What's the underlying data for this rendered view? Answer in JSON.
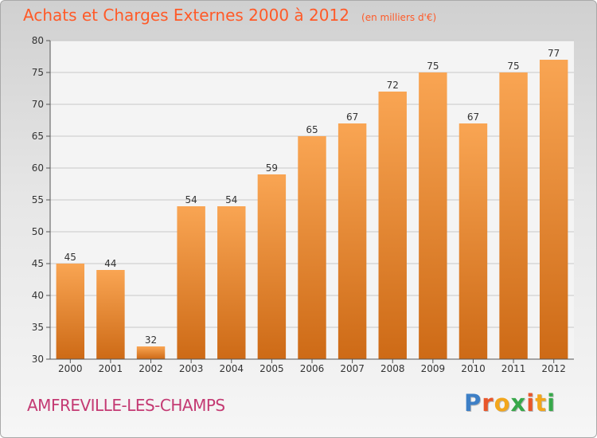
{
  "header": {
    "title": "Achats et Charges Externes 2000 à 2012",
    "subtitle": "(en milliers d'€)"
  },
  "footer": {
    "city": "AMFREVILLE-LES-CHAMPS",
    "logo_text": "Proxiti"
  },
  "colors": {
    "bar_top": "#f9a553",
    "bar_bottom": "#cd6a16",
    "title": "#ff5a28",
    "city": "#c43a73",
    "logo": [
      "#3d7fc6",
      "#e8562a",
      "#f2a61c",
      "#37a84a",
      "#e8562a",
      "#f2a61c",
      "#37a84a"
    ]
  },
  "chart_data": {
    "type": "bar",
    "title": "Achats et Charges Externes 2000 à 2012",
    "subtitle": "(en milliers d'€)",
    "categories": [
      "2000",
      "2001",
      "2002",
      "2003",
      "2004",
      "2005",
      "2006",
      "2007",
      "2008",
      "2009",
      "2010",
      "2011",
      "2012"
    ],
    "values": [
      45,
      44,
      32,
      54,
      54,
      59,
      65,
      67,
      72,
      75,
      67,
      75,
      77
    ],
    "ylim": [
      30,
      80
    ],
    "yticks": [
      30,
      35,
      40,
      45,
      50,
      55,
      60,
      65,
      70,
      75,
      80
    ],
    "grid": true,
    "xlabel": "",
    "ylabel": ""
  }
}
